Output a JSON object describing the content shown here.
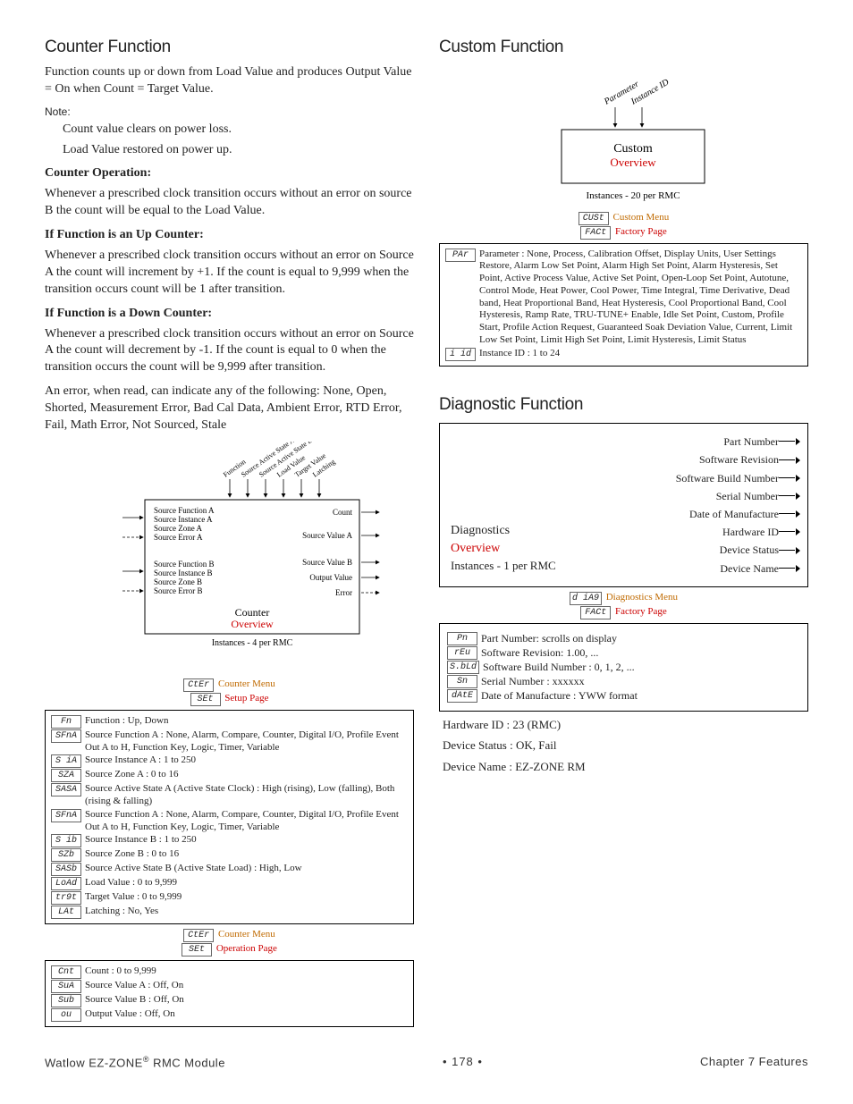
{
  "left": {
    "title": "Counter Function",
    "intro": "Function counts up or down from Load Value and produces Output Value = On when Count = Target Value.",
    "noteLabel": "Note:",
    "note1": "Count value clears on power loss.",
    "note2": "Load Value restored on power up.",
    "op_head": "Counter Operation:",
    "op_body": "Whenever a prescribed clock transition occurs without an error on source B the count will be equal to the Load Value.",
    "up_head": "If Function is an Up Counter:",
    "up_body": "Whenever a prescribed clock transition occurs without an error on Source A the count will increment by +1. If the count is equal to 9,999 when the transition occurs count will be 1 after transition.",
    "dn_head": "If Function is a Down Counter:",
    "dn_body": "Whenever a prescribed clock transition occurs without an error on Source A the count will decrement by -1. If the count is equal to 0 when the transition occurs the count will be 9,999 after transition.",
    "err_body": "An error, when read, can indicate any of the following: None, Open, Shorted, Measurement Error, Bad Cal Data, Ambient Error, RTD Error, Fail, Math Error, Not Sourced, Stale",
    "diagram": {
      "top_labels": [
        "Function",
        "Source Active State A",
        "Source Active State B",
        "Load Value",
        "Target Value",
        "Latching"
      ],
      "inA": [
        "Source Function A",
        "Source Instance A",
        "Source Zone A",
        "Source Error A"
      ],
      "inB": [
        "Source Function B",
        "Source Instance B",
        "Source Zone B",
        "Source Error B"
      ],
      "out": [
        "Count",
        "Source Value A",
        "Source Value B",
        "Output Value",
        "Error"
      ],
      "name": "Counter",
      "overview": "Overview",
      "inst": "Instances - 4 per RMC"
    },
    "menu1": {
      "seg": "CtEr",
      "label": "Counter Menu",
      "seg2": "SEt",
      "label2": "Setup Page"
    },
    "params1": [
      {
        "seg": "Fn",
        "txt": "Function : Up, Down"
      },
      {
        "seg": "SFnA",
        "txt": "Source Function A : None, Alarm, Compare, Counter, Digital I/O, Profile Event Out A to H, Function Key, Logic, Timer, Variable"
      },
      {
        "seg": "S iA",
        "txt": "Source Instance A : 1 to 250"
      },
      {
        "seg": "SZA",
        "txt": "Source Zone A : 0 to 16"
      },
      {
        "seg": "SASA",
        "txt": "Source Active State A (Active State Clock) : High (rising), Low (falling), Both (rising & falling)"
      },
      {
        "seg": "SFnA",
        "txt": "Source Function A : None, Alarm, Compare, Counter, Digital I/O, Profile Event Out A to H, Function Key, Logic, Timer, Variable"
      },
      {
        "seg": "S ib",
        "txt": "Source Instance B : 1 to 250"
      },
      {
        "seg": "SZb",
        "txt": "Source Zone B : 0 to 16"
      },
      {
        "seg": "SASb",
        "txt": "Source Active State B (Active State Load) : High, Low"
      },
      {
        "seg": "LoAd",
        "txt": "Load Value : 0 to 9,999"
      },
      {
        "seg": "tr9t",
        "txt": "Target Value : 0 to 9,999"
      },
      {
        "seg": "LAt",
        "txt": "Latching : No, Yes"
      }
    ],
    "menu2": {
      "seg": "CtEr",
      "label": "Counter Menu",
      "seg2": "SEt",
      "label2": "Operation Page"
    },
    "params2": [
      {
        "seg": "Cnt",
        "txt": "Count : 0 to 9,999"
      },
      {
        "seg": "SuA",
        "txt": "Source Value A : Off, On"
      },
      {
        "seg": "Sub",
        "txt": "Source Value B : Off, On"
      },
      {
        "seg": "ou",
        "txt": "Output Value : Off, On"
      }
    ]
  },
  "right": {
    "custom": {
      "title": "Custom Function",
      "top_labels": [
        "Parameter",
        "Instance ID"
      ],
      "name": "Custom",
      "overview": "Overview",
      "inst": "Instances - 20 per RMC",
      "menu": {
        "seg": "CUSt",
        "label": "Custom Menu",
        "seg2": "FACt",
        "label2": "Factory Page"
      },
      "param_seg": "PAr",
      "param_txt": "Parameter : None,  Process, Calibration Offset, Display Units, User Settings Restore, Alarm Low Set Point, Alarm High Set Point, Alarm Hysteresis, Set Point, Active Process Value, Active Set Point, Open-Loop Set Point, Autotune, Control Mode, Heat Power, Cool Power, Time Integral, Time Derivative, Dead band, Heat Proportional Band, Heat Hysteresis, Cool Proportional Band, Cool Hysteresis, Ramp Rate, TRU-TUNE+ Enable, Idle Set Point, Custom, Profile Start, Profile Action Request, Guaranteed Soak Deviation Value, Current, Limit Low Set Point, Limit High Set Point, Limit Hysteresis, Limit Status",
      "iid_seg": "i id",
      "iid_txt": "Instance ID : 1 to 24"
    },
    "diag": {
      "title": "Diagnostic Function",
      "outs": [
        "Part Number",
        "Software Revision",
        "Software Build Number",
        "Serial Number",
        "Date of Manufacture",
        "Hardware ID",
        "Device Status",
        "Device Name"
      ],
      "name": "Diagnostics",
      "overview": "Overview",
      "inst": "Instances - 1 per RMC",
      "menu": {
        "seg": "d iA9",
        "label": "Diagnostics Menu",
        "seg2": "FACt",
        "label2": "Factory Page"
      },
      "params": [
        {
          "seg": "Pn",
          "txt": "Part Number: scrolls on display"
        },
        {
          "seg": "rEu",
          "txt": "Software Revision: 1.00, ..."
        },
        {
          "seg": "S.bLd",
          "txt": "Software Build Number : 0, 1, 2, ..."
        },
        {
          "seg": "Sn",
          "txt": "Serial Number : xxxxxx"
        },
        {
          "seg": "dAtE",
          "txt": " Date of Manufacture : YWW format"
        }
      ],
      "extra": [
        "Hardware ID : 23 (RMC)",
        "Device Status : OK, Fail",
        "Device Name : EZ-ZONE RM"
      ]
    }
  },
  "footer": {
    "left": "Watlow EZ-ZONE",
    "left2": " RMC Module",
    "mid": "•  178  •",
    "right": "Chapter 7 Features"
  }
}
